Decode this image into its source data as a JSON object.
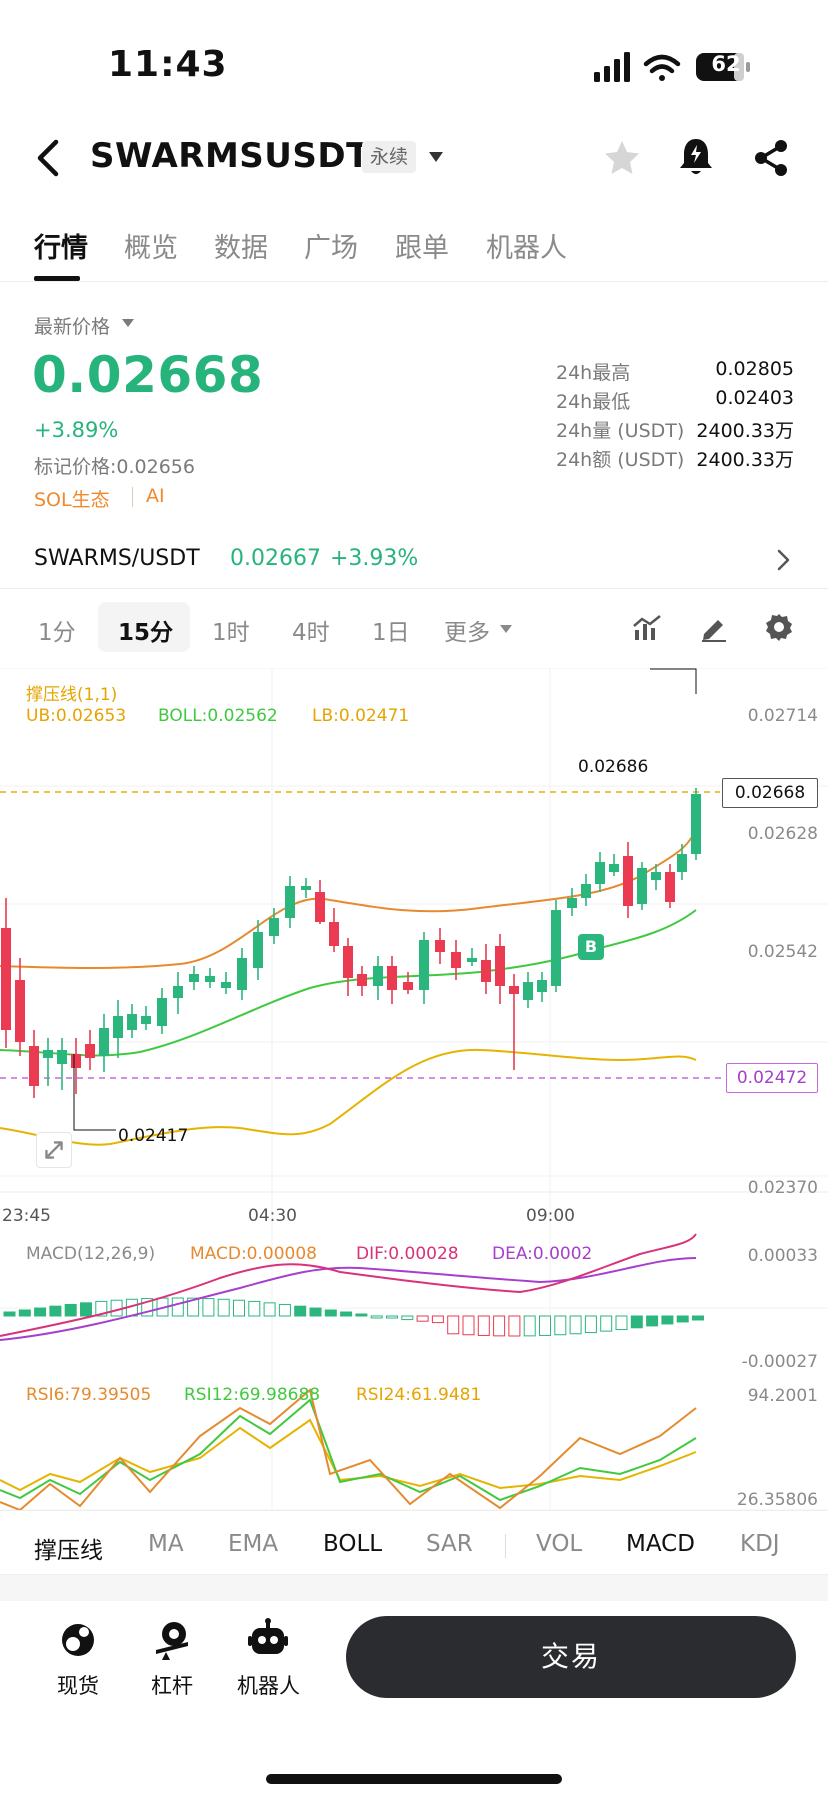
{
  "status_bar": {
    "time": "11:43",
    "battery": "62"
  },
  "header": {
    "title": "SWARMSUSDT",
    "badge": "永续"
  },
  "tabs": [
    {
      "label": "行情",
      "active": true
    },
    {
      "label": "概览"
    },
    {
      "label": "数据"
    },
    {
      "label": "广场"
    },
    {
      "label": "跟单"
    },
    {
      "label": "机器人"
    }
  ],
  "price": {
    "label": "最新价格",
    "last": "0.02668",
    "change": "+3.89%",
    "mark": "标记价格:0.02656",
    "tag_sol": "SOL生态",
    "tag_ai": "AI"
  },
  "stats": [
    {
      "label": "24h最高",
      "value": "0.02805"
    },
    {
      "label": "24h最低",
      "value": "0.02403"
    },
    {
      "label": "24h量 (USDT)",
      "value": "2400.33万"
    },
    {
      "label": "24h额 (USDT)",
      "value": "2400.33万"
    }
  ],
  "subpair": {
    "name": "SWARMS/USDT",
    "price": "0.02667",
    "change": "+3.93%"
  },
  "timeframes": [
    {
      "label": "1分"
    },
    {
      "label": "15分",
      "active": true
    },
    {
      "label": "1时"
    },
    {
      "label": "4时"
    },
    {
      "label": "1日"
    },
    {
      "label": "更多"
    }
  ],
  "chart": {
    "legend_title": "撑压线(1,1)",
    "ub": "UB:0.02653",
    "boll": "BOLL:0.02562",
    "lb": "LB:0.02471",
    "y_labels": [
      "0.02714",
      "0.02628",
      "0.02542",
      "0.02370"
    ],
    "current_price": "0.02668",
    "dashed_low": "0.02472",
    "high_marker": "0.02686",
    "low_marker": "0.02417",
    "x_labels": [
      "23:45",
      "04:30",
      "09:00"
    ],
    "buy_marker": "B",
    "macd": {
      "title": "MACD(12,26,9)",
      "macd": "MACD:0.00008",
      "dif": "DIF:0.00028",
      "dea": "DEA:0.0002",
      "y_top": "0.00033",
      "y_bottom": "-0.00027"
    },
    "rsi": {
      "rsi6": "RSI6:79.39505",
      "rsi12": "RSI12:69.98688",
      "rsi24": "RSI24:61.9481",
      "y_top": "94.2001",
      "y_bottom": "26.35806"
    },
    "colors": {
      "up": "#2bb67d",
      "down": "#ea3b53",
      "ub": "#e58a2e",
      "mid": "#40c940",
      "lb": "#e5b400"
    }
  },
  "indicator_tabs": [
    {
      "label": "撑压线",
      "on": true
    },
    {
      "label": "MA"
    },
    {
      "label": "EMA"
    },
    {
      "label": "BOLL",
      "on": true
    },
    {
      "label": "SAR"
    },
    {
      "label": "VOL"
    },
    {
      "label": "MACD",
      "on": true
    },
    {
      "label": "KDJ"
    }
  ],
  "bottom_nav": [
    {
      "label": "现货",
      "icon": "spot-icon"
    },
    {
      "label": "杠杆",
      "icon": "leverage-icon"
    },
    {
      "label": "机器人",
      "icon": "robot-icon"
    }
  ],
  "trade_button": "交易"
}
